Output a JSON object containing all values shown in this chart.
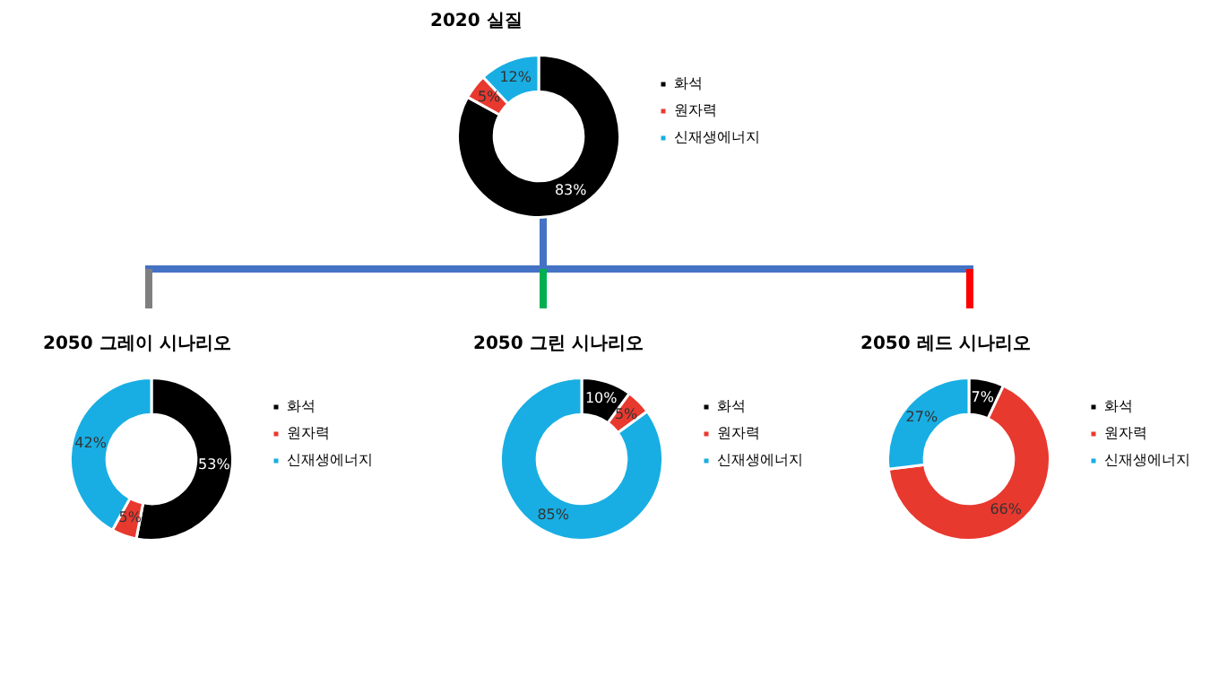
{
  "chart_data": [
    {
      "type": "donut",
      "title": "2020 실질",
      "categories": [
        "화석",
        "원자력",
        "신재생에너지"
      ],
      "values": [
        83,
        5,
        12
      ],
      "value_labels": [
        "83%",
        "5%",
        "12%"
      ],
      "colors": [
        "#000000",
        "#e8392f",
        "#18aee3"
      ],
      "legend": "right"
    },
    {
      "type": "donut",
      "title": "2050 그레이 시나리오",
      "categories": [
        "화석",
        "원자력",
        "신재생에너지"
      ],
      "values": [
        53,
        5,
        42
      ],
      "value_labels": [
        "53%",
        "5%",
        "42%"
      ],
      "colors": [
        "#000000",
        "#e8392f",
        "#18aee3"
      ],
      "legend": "right"
    },
    {
      "type": "donut",
      "title": "2050 그린 시나리오",
      "categories": [
        "화석",
        "원자력",
        "신재생에너지"
      ],
      "values": [
        10,
        5,
        85
      ],
      "value_labels": [
        "10%",
        "5%",
        "85%"
      ],
      "colors": [
        "#000000",
        "#e8392f",
        "#18aee3"
      ],
      "legend": "right"
    },
    {
      "type": "donut",
      "title": "2050 레드 시나리오",
      "categories": [
        "화석",
        "원자력",
        "신재생에너지"
      ],
      "values": [
        7,
        66,
        27
      ],
      "value_labels": [
        "7%",
        "66%",
        "27%"
      ],
      "colors": [
        "#000000",
        "#e8392f",
        "#18aee3"
      ],
      "legend": "right"
    }
  ]
}
